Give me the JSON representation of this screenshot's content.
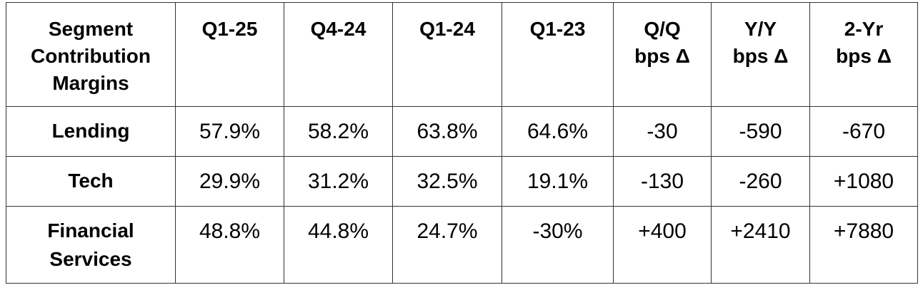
{
  "table": {
    "header": [
      "Segment Contribution Margins",
      "Q1-25",
      "Q4-24",
      "Q1-24",
      "Q1-23",
      "Q/Q bps Δ",
      "Y/Y bps Δ",
      "2-Yr bps Δ"
    ],
    "rows": [
      [
        "Lending",
        "57.9%",
        "58.2%",
        "63.8%",
        "64.6%",
        "-30",
        "-590",
        "-670"
      ],
      [
        "Tech",
        "29.9%",
        "31.2%",
        "32.5%",
        "19.1%",
        "-130",
        "-260",
        "+1080"
      ],
      [
        "Financial Services",
        "48.8%",
        "44.8%",
        "24.7%",
        "-30%",
        "+400",
        "+2410",
        "+7880"
      ]
    ]
  }
}
